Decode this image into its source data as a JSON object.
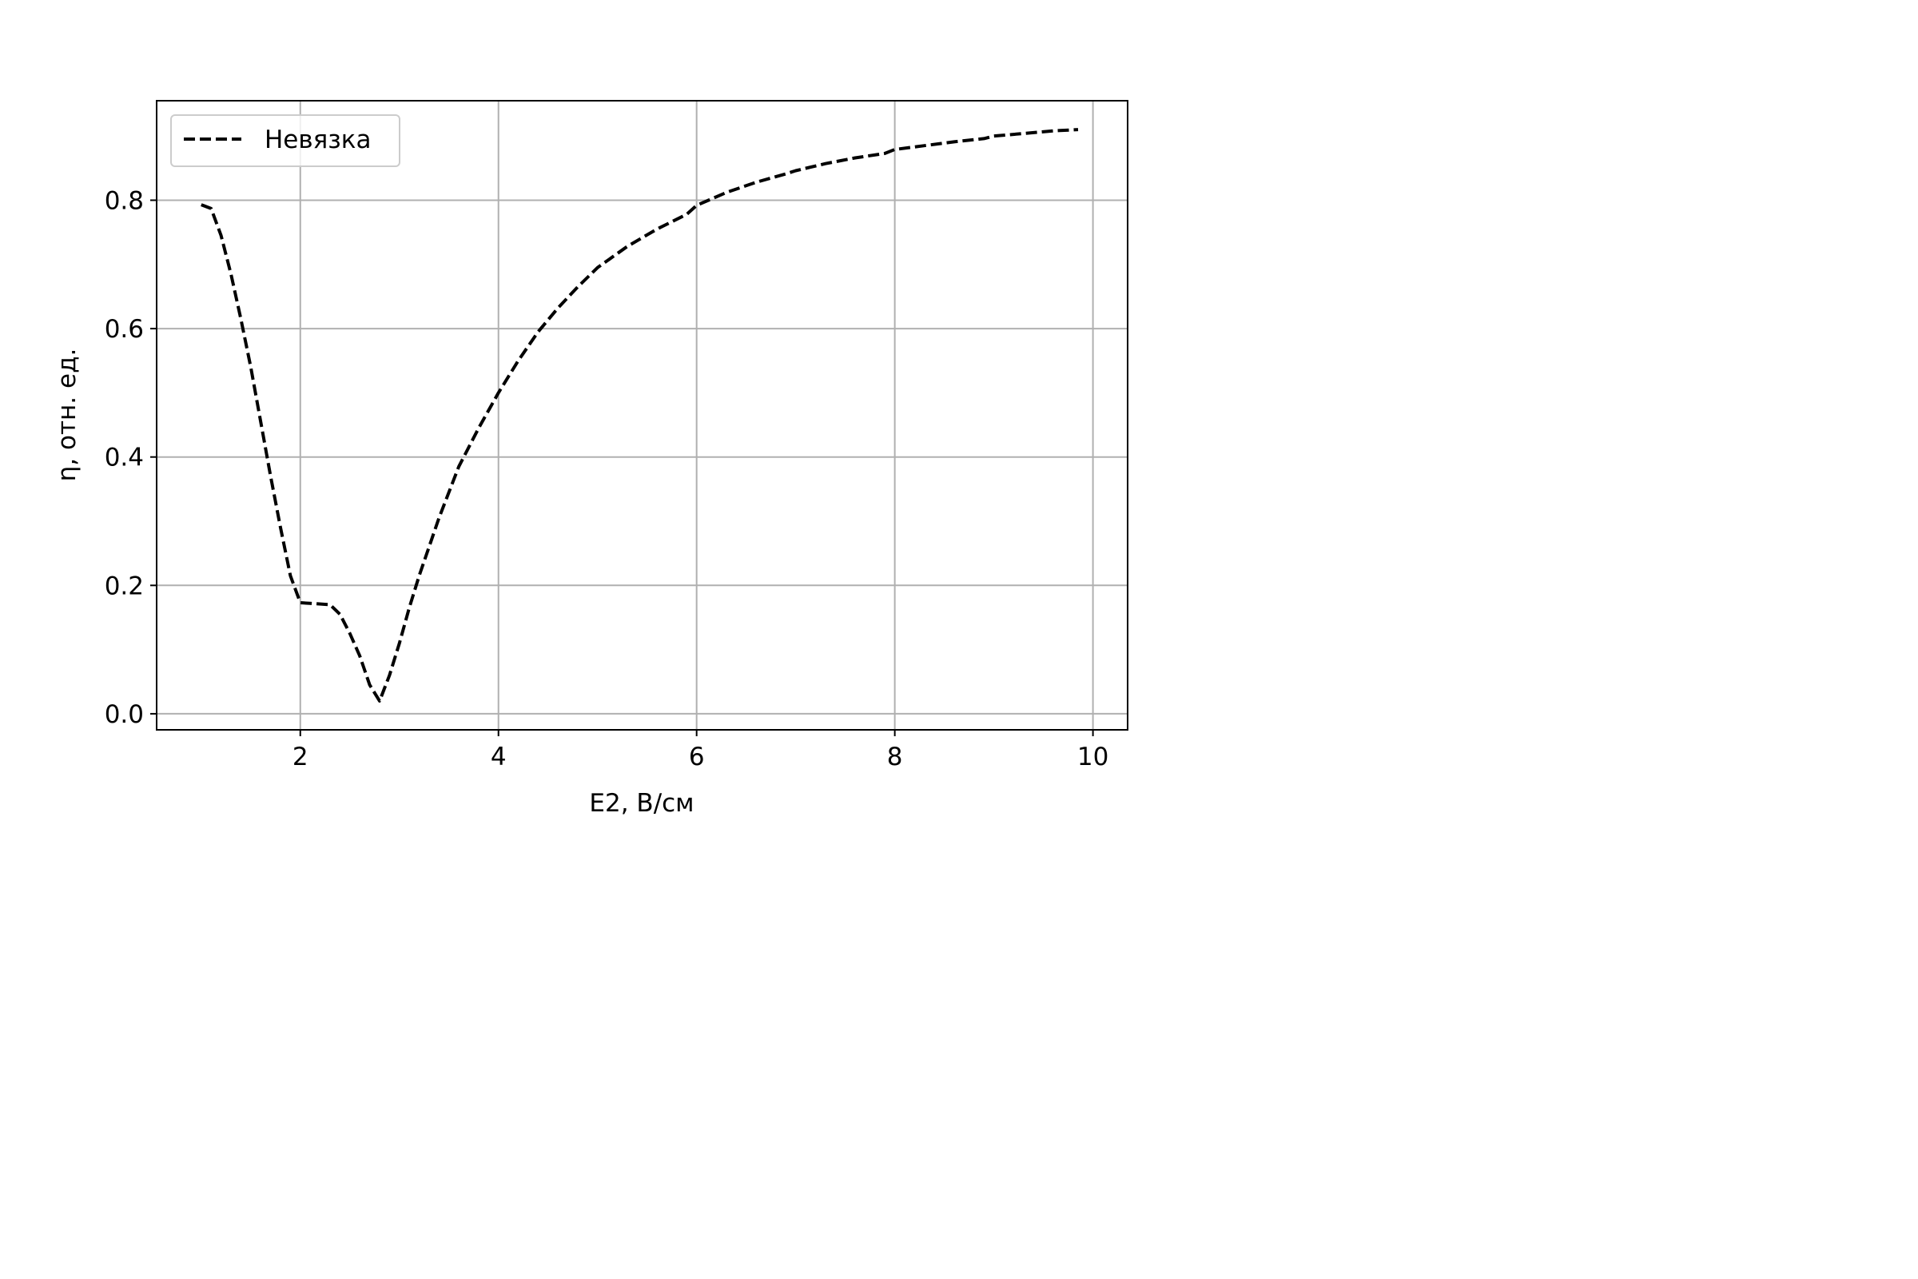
{
  "chart_data": {
    "type": "line",
    "xlabel": "E2, В/см",
    "ylabel": "η, отн. ед.",
    "xlim": [
      0.55,
      10.35
    ],
    "ylim": [
      -0.025,
      0.955
    ],
    "xticks": [
      "2",
      "4",
      "6",
      "8",
      "10"
    ],
    "yticks": [
      "0.0",
      "0.2",
      "0.4",
      "0.6",
      "0.8"
    ],
    "grid": true,
    "legend_position": "upper-left",
    "series": [
      {
        "name": "Невязка",
        "style": "dashed",
        "color": "#000000",
        "x": [
          1.0,
          1.1,
          1.2,
          1.3,
          1.4,
          1.5,
          1.6,
          1.7,
          1.8,
          1.9,
          2.0,
          2.3,
          2.4,
          2.5,
          2.6,
          2.7,
          2.8,
          2.9,
          3.0,
          3.1,
          3.2,
          3.4,
          3.6,
          3.8,
          4.0,
          4.2,
          4.4,
          4.6,
          4.8,
          5.0,
          5.3,
          5.6,
          5.9,
          6.0,
          6.3,
          6.6,
          6.9,
          7.0,
          7.3,
          7.6,
          7.9,
          8.0,
          8.3,
          8.6,
          8.9,
          9.0,
          9.3,
          9.6,
          9.85
        ],
        "y": [
          0.793,
          0.787,
          0.745,
          0.685,
          0.615,
          0.54,
          0.455,
          0.37,
          0.29,
          0.215,
          0.173,
          0.17,
          0.155,
          0.125,
          0.09,
          0.045,
          0.02,
          0.06,
          0.11,
          0.165,
          0.215,
          0.305,
          0.385,
          0.445,
          0.5,
          0.55,
          0.595,
          0.632,
          0.665,
          0.695,
          0.728,
          0.755,
          0.778,
          0.792,
          0.812,
          0.828,
          0.841,
          0.846,
          0.857,
          0.866,
          0.873,
          0.879,
          0.885,
          0.891,
          0.896,
          0.9,
          0.904,
          0.908,
          0.91
        ]
      }
    ]
  },
  "colors": {
    "grid": "#b0b0b0",
    "axes": "#000000",
    "line": "#000000",
    "legend_border": "#cccccc"
  }
}
